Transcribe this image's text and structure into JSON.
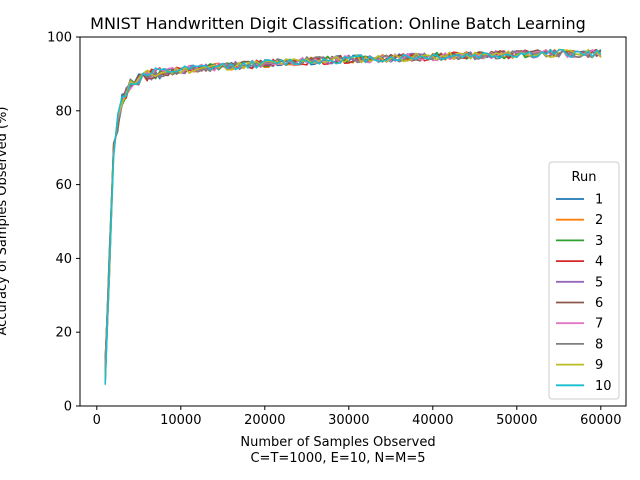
{
  "chart_data": {
    "type": "line",
    "title": "MNIST Handwritten Digit Classification: Online Batch Learning",
    "xlabel": "Number of Samples Observed",
    "xlabel2": "C=T=1000, E=10, N=M=5",
    "ylabel": "Accuracy of Samples Observed (%)",
    "xlim": [
      -2000,
      63000
    ],
    "ylim": [
      0,
      100
    ],
    "xticks": [
      0,
      10000,
      20000,
      30000,
      40000,
      50000,
      60000
    ],
    "yticks": [
      0,
      20,
      40,
      60,
      80,
      100
    ],
    "legend": {
      "title": "Run",
      "placement": "lower-right"
    },
    "x_start": 1000,
    "x_step": 500,
    "series": [
      {
        "name": "1",
        "color": "#1f77b4"
      },
      {
        "name": "2",
        "color": "#ff7f0e"
      },
      {
        "name": "3",
        "color": "#2ca02c"
      },
      {
        "name": "4",
        "color": "#d62728"
      },
      {
        "name": "5",
        "color": "#9467bd"
      },
      {
        "name": "6",
        "color": "#8c564b"
      },
      {
        "name": "7",
        "color": "#e377c2"
      },
      {
        "name": "8",
        "color": "#7f7f7f"
      },
      {
        "name": "9",
        "color": "#bcbd22"
      },
      {
        "name": "10",
        "color": "#17becf"
      }
    ],
    "trend": {
      "x": [
        1000,
        2000,
        3000,
        4000,
        5000,
        6000,
        8000,
        10000,
        15000,
        20000,
        25000,
        30000,
        35000,
        40000,
        45000,
        50000,
        55000,
        60000
      ],
      "y": [
        8,
        70,
        83,
        87,
        88.5,
        89.5,
        90.5,
        91,
        92,
        92.8,
        93.5,
        94,
        94.3,
        94.7,
        95,
        95.3,
        95.6,
        95.5
      ]
    }
  }
}
